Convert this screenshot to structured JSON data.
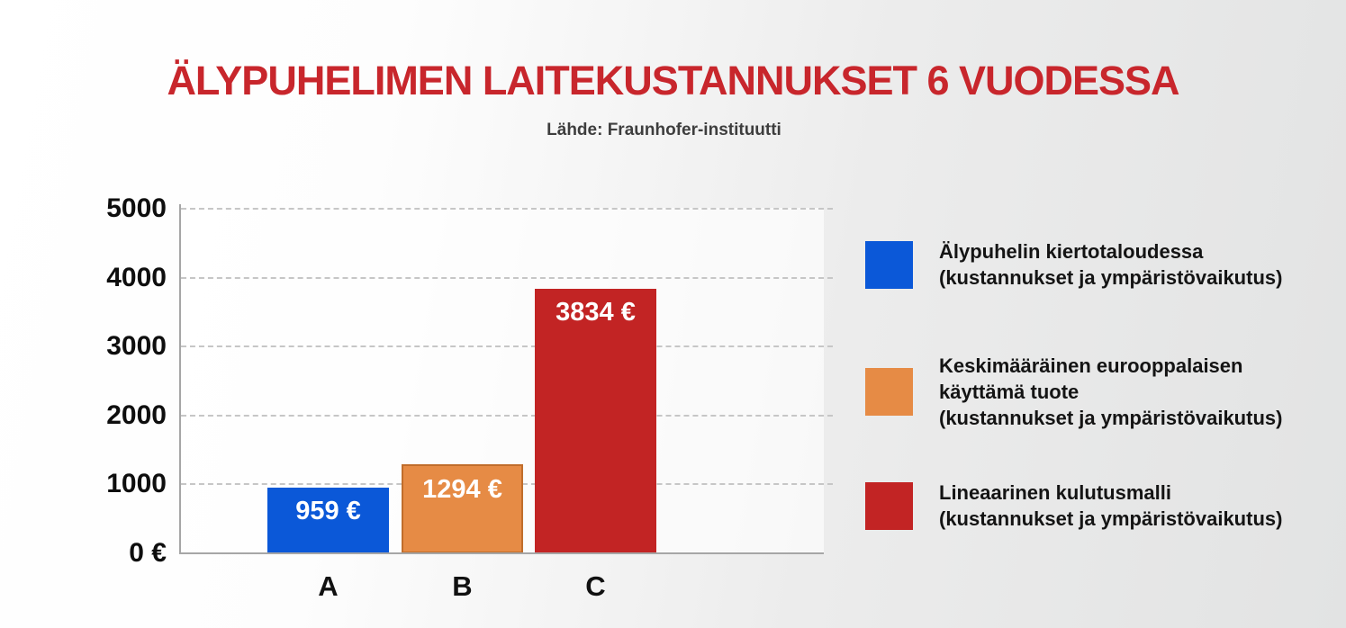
{
  "page": {
    "title": "ÄLYPUHELIMEN LAITEKUSTANNUKSET 6 VUODESSA",
    "subtitle": "Lähde: Fraunhofer-instituutti"
  },
  "colors": {
    "title_red": "#c8262c",
    "subtitle_gray": "#3e3e3e",
    "axis_gray": "#a6a6a6",
    "gridline_gray": "#c6c6c6",
    "bar_blue": "#0b58d8",
    "bar_orange": "#e68b45",
    "bar_orange_border": "#c06d2b",
    "bar_red": "#c22424",
    "value_label_white": "#ffffff",
    "text_black": "#141414"
  },
  "chart_data": {
    "type": "bar",
    "title": "ÄLYPUHELIMEN LAITEKUSTANNUKSET 6 VUODESSA",
    "subtitle": "Lähde: Fraunhofer-instituutti",
    "categories": [
      "A",
      "B",
      "C"
    ],
    "values": [
      959,
      1294,
      3834
    ],
    "bar_labels": [
      "959 €",
      "1294 €",
      "3834 €"
    ],
    "bar_colors": [
      "#0b58d8",
      "#e68b45",
      "#c22424"
    ],
    "bar_border_colors": [
      null,
      "#c06d2b",
      null
    ],
    "xlabel": "",
    "ylabel": "",
    "ylim": [
      0,
      5000
    ],
    "ytick_values": [
      0,
      1000,
      2000,
      3000,
      4000,
      5000
    ],
    "ytick_labels": [
      "0 €",
      "1000",
      "2000",
      "3000",
      "4000",
      "5000"
    ],
    "grid": "horizontal-dashed",
    "legend_position": "right",
    "legend": [
      {
        "color": "#0b58d8",
        "lines": [
          "Älypuhelin kiertotaloudessa",
          "(kustannukset ja ympäristövaikutus)"
        ]
      },
      {
        "color": "#e68b45",
        "lines": [
          "Keskimääräinen eurooppalaisen",
          "käyttämä tuote",
          "(kustannukset ja ympäristövaikutus)"
        ]
      },
      {
        "color": "#c22424",
        "lines": [
          "Lineaarinen kulutusmalli",
          "(kustannukset ja ympäristövaikutus)"
        ]
      }
    ]
  }
}
